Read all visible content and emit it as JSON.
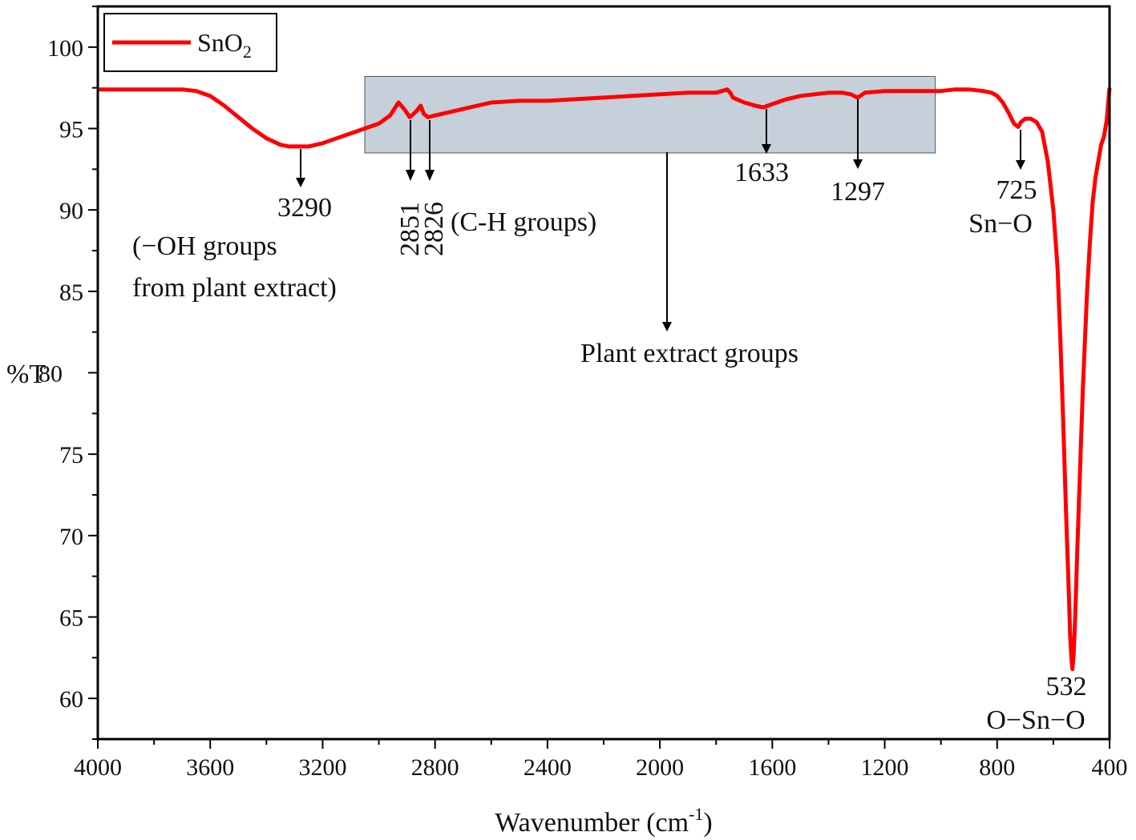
{
  "chart_data": {
    "type": "line",
    "title": "",
    "xlabel": "Wavenumber (cm",
    "xlabel_sup": "-1",
    "xlabel_close": ")",
    "ylabel": "%T",
    "xlim": [
      4000,
      400
    ],
    "ylim": [
      57.5,
      102.5
    ],
    "x_ticks": [
      4000,
      3600,
      3200,
      2800,
      2400,
      2000,
      1600,
      1200,
      800,
      400
    ],
    "y_ticks": [
      60,
      65,
      70,
      75,
      80,
      85,
      90,
      95,
      100
    ],
    "grid": false,
    "legend_position": "top-left",
    "series": [
      {
        "name": "SnO",
        "name_sub": "2",
        "color": "#ff0000",
        "x": [
          4000,
          3700,
          3650,
          3600,
          3550,
          3500,
          3450,
          3400,
          3350,
          3320,
          3290,
          3250,
          3200,
          3150,
          3100,
          3050,
          3000,
          2960,
          2930,
          2910,
          2890,
          2870,
          2851,
          2840,
          2826,
          2800,
          2750,
          2700,
          2650,
          2600,
          2500,
          2400,
          2300,
          2200,
          2100,
          2000,
          1900,
          1800,
          1760,
          1750,
          1740,
          1700,
          1660,
          1633,
          1600,
          1550,
          1500,
          1450,
          1400,
          1350,
          1320,
          1297,
          1270,
          1200,
          1100,
          1000,
          950,
          900,
          850,
          820,
          800,
          780,
          760,
          740,
          725,
          715,
          700,
          680,
          660,
          640,
          620,
          600,
          585,
          575,
          565,
          555,
          545,
          540,
          535,
          532,
          528,
          522,
          515,
          505,
          495,
          480,
          470,
          460,
          450,
          440,
          430,
          420,
          410,
          405,
          400
        ],
        "y": [
          97.4,
          97.4,
          97.3,
          97.0,
          96.4,
          95.7,
          95.0,
          94.4,
          94.0,
          93.9,
          93.9,
          93.9,
          94.1,
          94.4,
          94.7,
          95.0,
          95.3,
          95.8,
          96.6,
          96.2,
          95.7,
          96.0,
          96.4,
          95.9,
          95.7,
          95.8,
          96.0,
          96.2,
          96.4,
          96.6,
          96.7,
          96.7,
          96.8,
          96.9,
          97.0,
          97.1,
          97.2,
          97.2,
          97.4,
          97.2,
          96.9,
          96.6,
          96.4,
          96.3,
          96.5,
          96.8,
          97.0,
          97.1,
          97.2,
          97.2,
          97.1,
          96.9,
          97.2,
          97.3,
          97.3,
          97.3,
          97.4,
          97.4,
          97.3,
          97.2,
          97.0,
          96.6,
          96.0,
          95.3,
          95.1,
          95.4,
          95.6,
          95.6,
          95.4,
          94.8,
          93.0,
          90.0,
          86.5,
          82.0,
          77.0,
          71.5,
          66.5,
          63.8,
          62.3,
          61.8,
          62.6,
          65.0,
          69.0,
          74.0,
          79.0,
          85.0,
          88.0,
          90.5,
          92.0,
          93.0,
          94.0,
          94.5,
          95.5,
          96.5,
          97.5
        ]
      }
    ],
    "annotations": {
      "peak_3290": "3290",
      "oh_line1": "(−OH groups",
      "oh_line2": "from plant extract)",
      "peak_2851": "2851",
      "peak_2826": "2826",
      "ch_groups": "(C-H groups)",
      "plant_extract_groups": "Plant extract groups",
      "peak_1633": "1633",
      "peak_1297": "1297",
      "peak_725": "725",
      "sn_o": "Sn−O",
      "peak_532": "532",
      "o_sn_o": "O−Sn−O"
    },
    "highlight_region": {
      "x_range": [
        3050,
        1020
      ],
      "y_range": [
        93.5,
        98.2
      ],
      "color": "#c5d0da"
    },
    "y_tick_overlap_label": "80"
  }
}
